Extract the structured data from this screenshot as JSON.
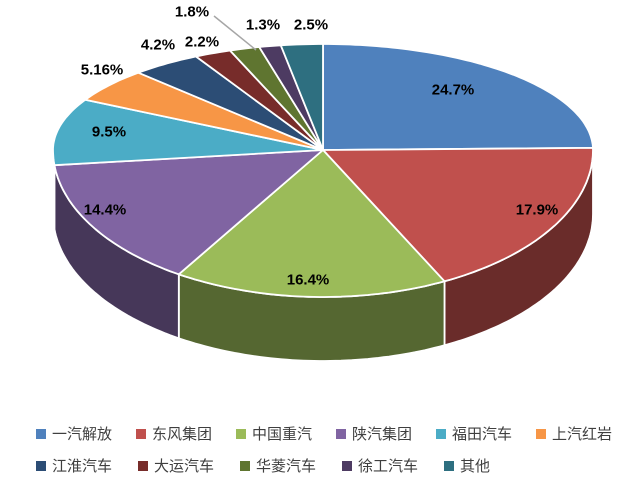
{
  "chart_data": {
    "type": "pie",
    "style": "3d-pie",
    "title": "",
    "legend_position": "bottom",
    "background_color": "#FFFFFF",
    "label_leader_line_color": "#A6A6A6",
    "slices": [
      {
        "label": "一汽解放",
        "value": 24.7,
        "pct_label": "24.7%",
        "color": "#4F81BD",
        "label_placement": "inside"
      },
      {
        "label": "东风集团",
        "value": 17.9,
        "pct_label": "17.9%",
        "color": "#C0504D",
        "label_placement": "inside"
      },
      {
        "label": "中国重汽",
        "value": 16.4,
        "pct_label": "16.4%",
        "color": "#9BBB59",
        "label_placement": "inside"
      },
      {
        "label": "陕汽集团",
        "value": 14.4,
        "pct_label": "14.4%",
        "color": "#8064A2",
        "label_placement": "inside"
      },
      {
        "label": "福田汽车",
        "value": 9.5,
        "pct_label": "9.5%",
        "color": "#4BACC6",
        "label_placement": "inside"
      },
      {
        "label": "上汽红岩",
        "value": 5.16,
        "pct_label": "5.16%",
        "color": "#F79646",
        "label_placement": "outside"
      },
      {
        "label": "江淮汽车",
        "value": 4.2,
        "pct_label": "4.2%",
        "color": "#2C4D75",
        "label_placement": "outside"
      },
      {
        "label": "大运汽车",
        "value": 2.2,
        "pct_label": "2.2%",
        "color": "#772C2A",
        "label_placement": "outside"
      },
      {
        "label": "华菱汽车",
        "value": 1.8,
        "pct_label": "1.8%",
        "color": "#5F7530",
        "label_placement": "outside-with-leader"
      },
      {
        "label": "徐工汽车",
        "value": 1.3,
        "pct_label": "1.3%",
        "color": "#4D3B62",
        "label_placement": "outside"
      },
      {
        "label": "其他",
        "value": 2.5,
        "pct_label": "2.5%",
        "color": "#2E6F80",
        "label_placement": "outside"
      }
    ],
    "legend_rows": [
      [
        0,
        1,
        2,
        3,
        4,
        5
      ],
      [
        6,
        7,
        8,
        9,
        10
      ]
    ]
  }
}
